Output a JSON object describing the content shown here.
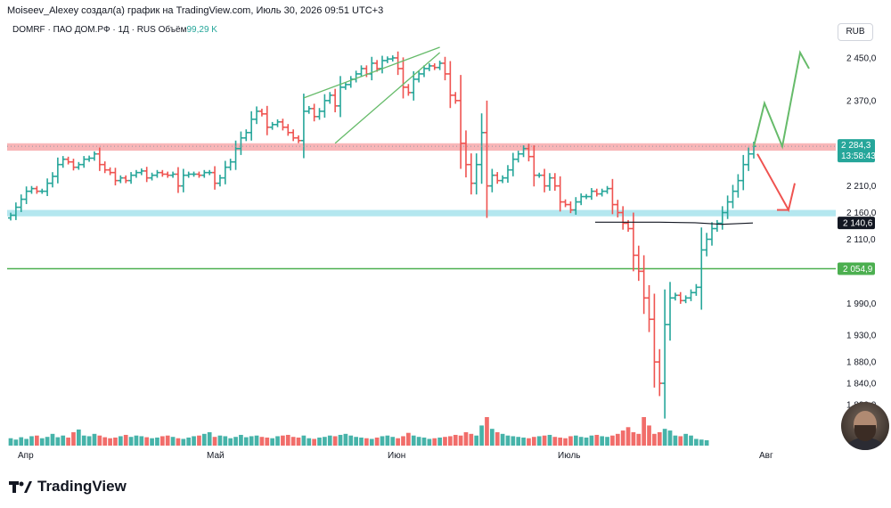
{
  "header": {
    "attribution": "Moiseev_Alexey создал(а) график на TradingView.com, Июль 30, 2026 09:51 UTC+3"
  },
  "symbol": {
    "ticker": "DOMRF",
    "name": "ПАО ДОМ.РФ",
    "interval": "1Д",
    "exchange": "RUS",
    "volume_label": "Объём",
    "volume_value": "99,29 K"
  },
  "currency": "RUB",
  "brand": {
    "name": "TradingView"
  },
  "colors": {
    "up": "#26a69a",
    "down": "#ef5350",
    "resistance_zone": "#f7a9ab",
    "support_zone": "#a7e3ec",
    "support_line": "#4caf50",
    "arrow_up": "#66bb6a",
    "arrow_down": "#ef5350",
    "triangle": "#66bb6a"
  },
  "chart_data": {
    "type": "bar",
    "subtype": "ohlc",
    "x_labels": [
      "Апр",
      "Май",
      "Июн",
      "Июль",
      "Авг"
    ],
    "price_ticks": [
      "2 450,0",
      "2 370,0",
      "2 210,0",
      "2 160,0",
      "2 110,0",
      "1 990,0",
      "1 930,0",
      "1 880,0",
      "1 840,0",
      "1 800,0"
    ],
    "price_ticks_values": [
      2450,
      2370,
      2210,
      2160,
      2110,
      1990,
      1930,
      1880,
      1840,
      1800
    ],
    "y_range": [
      1790,
      2475
    ],
    "last_price": {
      "value": "2 284,3",
      "countdown": "13:58:43"
    },
    "marked_levels": [
      {
        "value": "2 140,6"
      },
      {
        "value": "2 054,9"
      }
    ],
    "zones": [
      {
        "name": "resistance",
        "from": 2276,
        "to": 2290
      },
      {
        "name": "support",
        "from": 2153,
        "to": 2165
      }
    ],
    "horizontal_line": 2054.9,
    "series_values": [
      2155,
      2170,
      2185,
      2200,
      2205,
      2200,
      2200,
      2215,
      2228,
      2250,
      2260,
      2255,
      2245,
      2250,
      2260,
      2262,
      2270,
      2250,
      2240,
      2235,
      2220,
      2225,
      2220,
      2230,
      2235,
      2238,
      2225,
      2230,
      2235,
      2232,
      2230,
      2232,
      2210,
      2230,
      2232,
      2232,
      2230,
      2235,
      2235,
      2215,
      2225,
      2245,
      2255,
      2280,
      2300,
      2310,
      2335,
      2350,
      2345,
      2320,
      2325,
      2330,
      2320,
      2310,
      2300,
      2295,
      2350,
      2355,
      2340,
      2350,
      2370,
      2380,
      2360,
      2395,
      2400,
      2410,
      2420,
      2430,
      2420,
      2440,
      2430,
      2445,
      2448,
      2450,
      2430,
      2395,
      2385,
      2410,
      2420,
      2430,
      2435,
      2432,
      2440,
      2420,
      2380,
      2370,
      2290,
      2250,
      2215,
      2250,
      2310,
      2210,
      2230,
      2220,
      2225,
      2240,
      2260,
      2270,
      2280,
      2265,
      2230,
      2230,
      2210,
      2225,
      2210,
      2180,
      2175,
      2165,
      2180,
      2190,
      2190,
      2200,
      2195,
      2200,
      2205,
      2175,
      2160,
      2140,
      2130,
      2080,
      2050,
      2000,
      1960,
      1880,
      1840,
      1950,
      2000,
      2005,
      1995,
      2000,
      2010,
      2020,
      2090,
      2110,
      2130,
      2140,
      2160,
      2180,
      2200,
      2220,
      2250,
      2270,
      2284.3
    ],
    "volume": [
      22,
      18,
      25,
      20,
      28,
      30,
      22,
      26,
      35,
      25,
      30,
      24,
      40,
      48,
      30,
      28,
      35,
      30,
      25,
      22,
      24,
      28,
      32,
      26,
      30,
      28,
      25,
      22,
      24,
      28,
      30,
      26,
      22,
      20,
      24,
      28,
      30,
      35,
      40,
      26,
      30,
      28,
      22,
      26,
      32,
      25,
      28,
      30,
      26,
      24,
      22,
      28,
      30,
      32,
      26,
      24,
      30,
      22,
      20,
      24,
      26,
      30,
      28,
      32,
      35,
      30,
      26,
      24,
      22,
      20,
      24,
      28,
      30,
      26,
      22,
      28,
      38,
      30,
      26,
      24,
      20,
      22,
      24,
      26,
      28,
      32,
      30,
      40,
      35,
      30,
      60,
      85,
      50,
      40,
      35,
      30,
      28,
      26,
      24,
      22,
      26,
      28,
      30,
      32,
      26,
      24,
      22,
      28,
      30,
      26,
      24,
      30,
      32,
      28,
      26,
      30,
      35,
      45,
      55,
      40,
      35,
      85,
      60,
      35,
      40,
      50,
      45,
      30,
      28,
      35,
      30,
      20,
      18,
      16
    ]
  }
}
